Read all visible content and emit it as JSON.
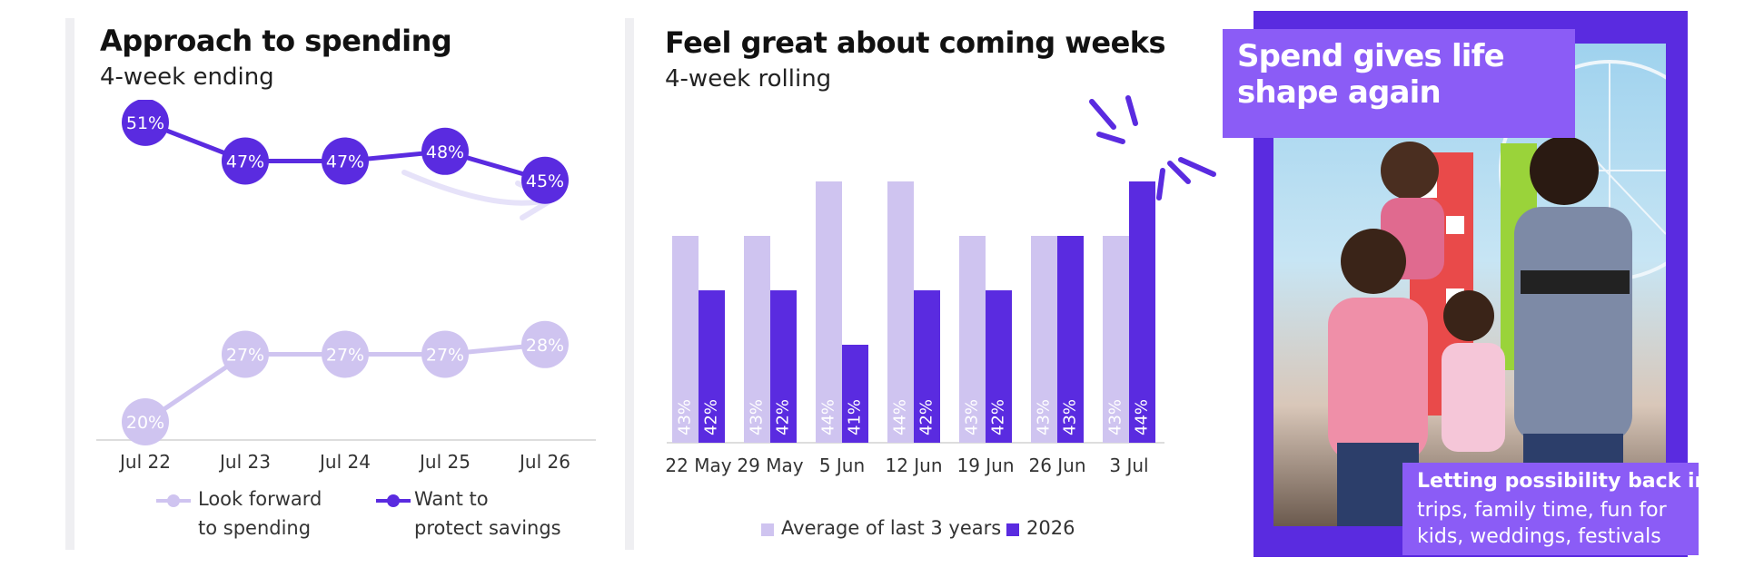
{
  "colors": {
    "light": "#cfc4f0",
    "dark": "#5a2be0",
    "accent": "#8b5cf6",
    "frame": "#5a2be0"
  },
  "chart_data": [
    {
      "type": "line",
      "title": "Approach to spending",
      "subtitle": "4-week ending",
      "categories": [
        "Jul 22",
        "Jul 23",
        "Jul 24",
        "Jul 25",
        "Jul 26"
      ],
      "series": [
        {
          "name": "Want to protect savings",
          "values": [
            51,
            47,
            47,
            48,
            45
          ],
          "labels": [
            "51%",
            "47%",
            "47%",
            "48%",
            "45%"
          ]
        },
        {
          "name": "Look forward to spending",
          "values": [
            20,
            27,
            27,
            27,
            28
          ],
          "labels": [
            "20%",
            "27%",
            "27%",
            "27%",
            "28%"
          ]
        }
      ],
      "legend": [
        {
          "line1": "Look forward",
          "line2": "to spending"
        },
        {
          "line1": "Want to",
          "line2": "protect savings"
        }
      ],
      "legend_position": "bottom"
    },
    {
      "type": "bar",
      "title": "Feel great about coming weeks",
      "subtitle": "4-week rolling",
      "categories": [
        "22 May",
        "29 May",
        "5 Jun",
        "12 Jun",
        "19 Jun",
        "26 Jun",
        "3 Jul"
      ],
      "series": [
        {
          "name": "Average of last 3 years",
          "values": [
            43,
            43,
            44,
            44,
            43,
            43,
            43
          ],
          "labels": [
            "43%",
            "43%",
            "44%",
            "44%",
            "43%",
            "43%",
            "43%"
          ]
        },
        {
          "name": "2026",
          "values": [
            42,
            42,
            41,
            42,
            42,
            43,
            44
          ],
          "labels": [
            "42%",
            "42%",
            "41%",
            "42%",
            "42%",
            "43%",
            "44%"
          ]
        }
      ],
      "legend_position": "bottom"
    }
  ],
  "callout": {
    "title": "Spend gives life shape again",
    "body_heading": "Letting possibility back in:",
    "body_text": "trips, family time, fun for kids, weddings, festivals"
  },
  "icons": {
    "photo": "family-fair-photo",
    "sparkle": "sparkle-accent-icon",
    "arrow": "trend-arrow-icon"
  }
}
